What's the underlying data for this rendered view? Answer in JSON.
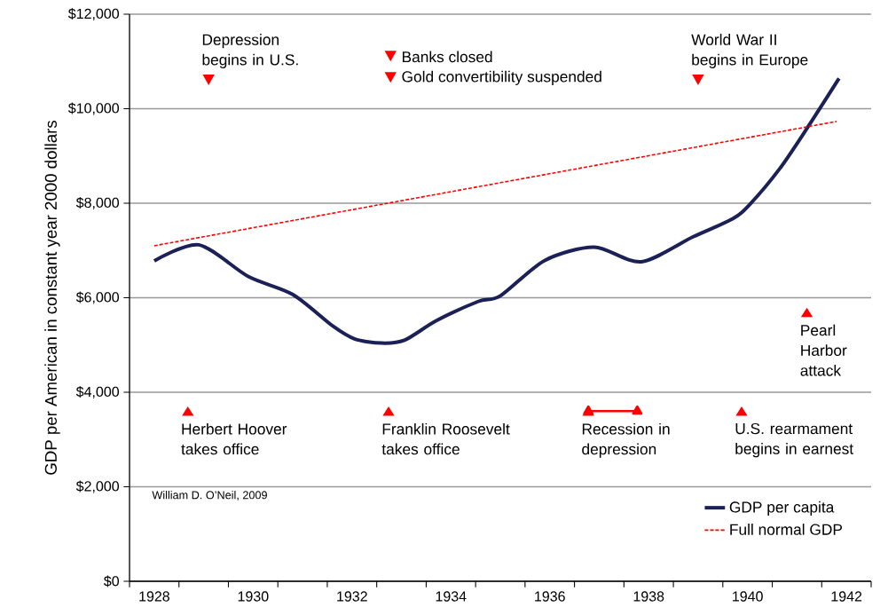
{
  "chart_data": {
    "type": "line",
    "ylabel": "GDP per American in constant year 2000 dollars",
    "x": [
      1928.0,
      1928.9,
      1929.9,
      1930.8,
      1931.6,
      1932.05,
      1932.6,
      1933.06,
      1933.7,
      1934.55,
      1935.0,
      1935.9,
      1936.9,
      1937.85,
      1938.9,
      1939.7,
      1940.05,
      1940.65,
      1941.2,
      1941.85
    ],
    "series": [
      {
        "name": "GDP per capita",
        "color": "#1b2157",
        "line_style": "solid",
        "values": [
          6780,
          7120,
          6450,
          6070,
          5410,
          5130,
          5040,
          5100,
          5510,
          5920,
          6040,
          6790,
          7070,
          6760,
          7290,
          7670,
          7980,
          8730,
          9580,
          10640
        ]
      },
      {
        "name": "Full normal GDP",
        "color": "#ff0000",
        "line_style": "dashed",
        "x": [
          1928.0,
          1941.8
        ],
        "values": [
          7100,
          9730
        ]
      },
      {
        "color": "#ff0000",
        "line_style": "solid",
        "marker": "triangle",
        "x": [
          1936.78,
          1937.77
        ],
        "values": [
          3600,
          3600
        ]
      }
    ],
    "xlim": [
      1927.5,
      1942.5
    ],
    "xticks": [
      1928,
      1930,
      1932,
      1934,
      1936,
      1938,
      1940,
      1942,
      {
        "value": 1927.5,
        "label": null
      },
      {
        "value": 1928.5,
        "label": null
      },
      {
        "value": 1929.5,
        "label": null
      },
      {
        "value": 1930.5,
        "label": null
      },
      {
        "value": 1931.5,
        "label": null
      },
      {
        "value": 1932.5,
        "label": null
      },
      {
        "value": 1933.5,
        "label": null
      },
      {
        "value": 1934.5,
        "label": null
      },
      {
        "value": 1935.5,
        "label": null
      },
      {
        "value": 1936.5,
        "label": null
      },
      {
        "value": 1937.5,
        "label": null
      },
      {
        "value": 1938.5,
        "label": null
      },
      {
        "value": 1939.5,
        "label": null
      },
      {
        "value": 1940.5,
        "label": null
      },
      {
        "value": 1941.5,
        "label": null
      },
      {
        "value": 1942.5,
        "label": null
      }
    ],
    "ylim": [
      0,
      12000
    ],
    "yticks": [
      {
        "value": 0,
        "label": "$0"
      },
      {
        "value": 2000,
        "label": "$2,000"
      },
      {
        "value": 4000,
        "label": "$4,000"
      },
      {
        "value": 6000,
        "label": "$6,000"
      },
      {
        "value": 8000,
        "label": "$8,000"
      },
      {
        "value": 10000,
        "label": "$10,000"
      },
      {
        "value": 12000,
        "label": "$12,000"
      }
    ],
    "grid": "y",
    "legend": "bottom right",
    "annotations": [
      {
        "text": "Depression begins in U.S.",
        "x": 1929.1,
        "y": 10600
      },
      {
        "text": "Banks closed",
        "x": 1932.78,
        "y": 11100
      },
      {
        "text": "Gold convertibility suspended",
        "x": 1932.78,
        "y": 10650
      },
      {
        "text": "World War II begins in Europe",
        "x": 1939.0,
        "y": 10600
      },
      {
        "text": "Pearl Harbor attack",
        "x": 1941.2,
        "y": 5690
      },
      {
        "text": "Herbert Hoover takes office",
        "x": 1928.68,
        "y": 3600
      },
      {
        "text": "Franklin Roosevelt takes office",
        "x": 1932.74,
        "y": 3600
      },
      {
        "text": "Recession in depression",
        "x": 1936.78,
        "y": 3600
      },
      {
        "text": "U.S. rearmament begins in earnest",
        "x": 1939.88,
        "y": 3600
      },
      "William D. O’Neil, 2009"
    ]
  }
}
